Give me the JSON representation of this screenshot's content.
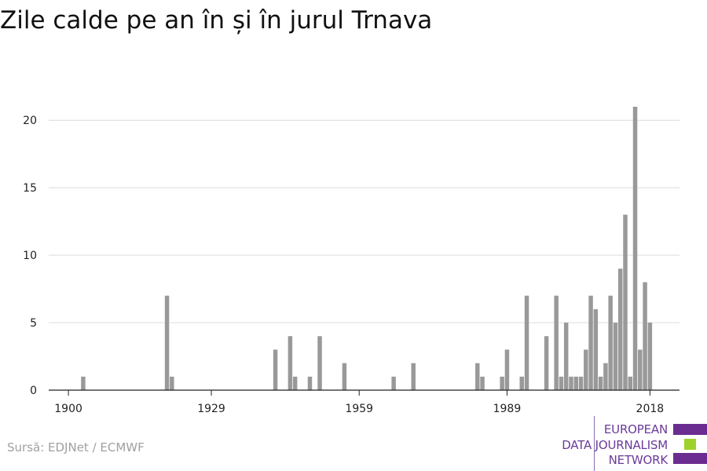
{
  "title": "Zile calde pe an în și în jurul Trnava",
  "source": "Sursă: EDJNet / ECMWF",
  "logo": {
    "lines": [
      "EUROPEAN",
      "DATA JOURNALISM",
      "NETWORK"
    ],
    "colors": [
      "#6a2c91",
      "#9ed22a",
      "#6a2c91"
    ]
  },
  "chart_data": {
    "type": "bar",
    "bar_color": "#999999",
    "grid": true,
    "xlim": [
      1896,
      2024
    ],
    "ylim": [
      0,
      21
    ],
    "x_ticks": [
      1900,
      1929,
      1959,
      1989,
      2018
    ],
    "y_ticks": [
      0,
      5,
      10,
      15,
      20
    ],
    "x": [
      1903,
      1920,
      1921,
      1942,
      1945,
      1946,
      1949,
      1951,
      1956,
      1966,
      1970,
      1983,
      1984,
      1988,
      1989,
      1992,
      1993,
      1997,
      1999,
      2000,
      2001,
      2002,
      2003,
      2004,
      2005,
      2006,
      2007,
      2008,
      2009,
      2010,
      2011,
      2012,
      2013,
      2014,
      2015,
      2016,
      2017,
      2018,
      2019
    ],
    "values": [
      1,
      7,
      1,
      3,
      4,
      1,
      1,
      4,
      2,
      1,
      2,
      2,
      1,
      1,
      3,
      1,
      7,
      4,
      7,
      1,
      5,
      1,
      1,
      1,
      3,
      7,
      6,
      1,
      2,
      7,
      5,
      9,
      13,
      1,
      21,
      3,
      8,
      5,
      0
    ],
    "title": "Zile calde pe an în și în jurul Trnava",
    "xlabel": "",
    "ylabel": ""
  }
}
